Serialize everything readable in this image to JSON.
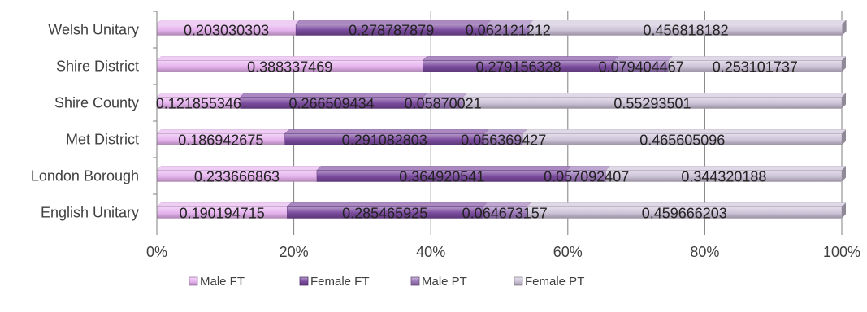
{
  "chart_data": {
    "type": "bar",
    "orientation": "horizontal",
    "stacking": "percent",
    "categories": [
      "Welsh Unitary",
      "Shire District",
      "Shire County",
      "Met District",
      "London Borough",
      "English Unitary"
    ],
    "series": [
      {
        "name": "Male FT",
        "color": "#e6b3ee",
        "values": [
          0.203030303,
          0.388337469,
          0.121855346,
          0.186942675,
          0.233666863,
          0.190194715
        ],
        "labels": [
          "0.203030303",
          "0.388337469",
          "0.121855346",
          "0.186942675",
          "0.233666863",
          "0.190194715"
        ]
      },
      {
        "name": "Female FT",
        "color": "#7b4a9e",
        "values": [
          0.278787879,
          0.279156328,
          0.266509434,
          0.291082803,
          0.364920541,
          0.285465925
        ],
        "labels": [
          "0.278787879",
          "0.279156328",
          "0.266509434",
          "0.291082803",
          "0.364920541",
          "0.285465925"
        ]
      },
      {
        "name": "Male PT",
        "color": "#9b78b8",
        "values": [
          0.062121212,
          0.079404467,
          0.05870021,
          0.056369427,
          0.057092407,
          0.064673157
        ],
        "labels": [
          "0.062121212",
          "0.079404467",
          "0.05870021",
          "0.056369427",
          "0.057092407",
          "0.064673157"
        ]
      },
      {
        "name": "Female PT",
        "color": "#cdc3d8",
        "values": [
          0.456818182,
          0.253101737,
          0.55293501,
          0.465605096,
          0.344320188,
          0.459666203
        ],
        "labels": [
          "0.456818182",
          "0.253101737",
          "0.55293501",
          "0.465605096",
          "0.344320188",
          "0.459666203"
        ]
      }
    ],
    "xlim": [
      0,
      1
    ],
    "x_ticks": [
      0,
      0.2,
      0.4,
      0.6,
      0.8,
      1.0
    ],
    "x_tick_labels": [
      "0%",
      "20%",
      "40%",
      "60%",
      "80%",
      "100%"
    ],
    "grid": true,
    "legend_position": "bottom"
  }
}
